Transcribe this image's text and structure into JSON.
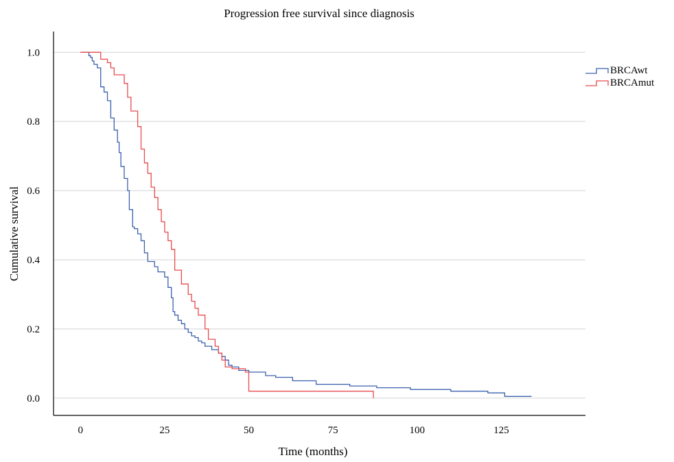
{
  "chart_data": {
    "type": "line",
    "subtype": "kaplan-meier-step",
    "title": "Progression free survival since diagnosis",
    "xlabel": "Time (months)",
    "ylabel": "Cumulative survival",
    "xlim": [
      -8,
      150
    ],
    "ylim": [
      -0.05,
      1.06
    ],
    "xticks": [
      0,
      25,
      50,
      75,
      100,
      125
    ],
    "xtick_labels": [
      "0",
      "25",
      "50",
      "75",
      "100",
      "125"
    ],
    "yticks": [
      0.0,
      0.2,
      0.4,
      0.6,
      0.8,
      1.0
    ],
    "ytick_labels": [
      "0.0",
      "0.2",
      "0.4",
      "0.6",
      "0.8",
      "1.0"
    ],
    "grid": "horizontal",
    "legend_position": "top-right",
    "series": [
      {
        "name": "BRCAwt",
        "color": "#3a5fad",
        "x": [
          0,
          2.5,
          3,
          3.5,
          4,
          5,
          6,
          7,
          8,
          9,
          10,
          11,
          11.5,
          12,
          13,
          14,
          14.5,
          15.5,
          16,
          17,
          18,
          19,
          20,
          22,
          23,
          25,
          26,
          27,
          27.5,
          28,
          29,
          30,
          31,
          32,
          33,
          34,
          35,
          36,
          37,
          39,
          41,
          42,
          43,
          44,
          45,
          47,
          50,
          55,
          58,
          63,
          70,
          80,
          88,
          98,
          110,
          121,
          126,
          134
        ],
        "y": [
          1.0,
          0.99,
          0.985,
          0.975,
          0.965,
          0.955,
          0.9,
          0.885,
          0.86,
          0.81,
          0.775,
          0.74,
          0.71,
          0.67,
          0.635,
          0.6,
          0.545,
          0.495,
          0.49,
          0.475,
          0.455,
          0.42,
          0.395,
          0.38,
          0.365,
          0.35,
          0.32,
          0.29,
          0.25,
          0.24,
          0.225,
          0.215,
          0.2,
          0.19,
          0.18,
          0.175,
          0.165,
          0.16,
          0.15,
          0.14,
          0.13,
          0.12,
          0.11,
          0.095,
          0.09,
          0.08,
          0.075,
          0.065,
          0.06,
          0.05,
          0.04,
          0.035,
          0.03,
          0.025,
          0.02,
          0.015,
          0.005,
          0.005
        ]
      },
      {
        "name": "BRCAmut",
        "color": "#e8494c",
        "x": [
          0,
          6,
          8,
          9,
          10,
          13,
          14,
          15,
          17,
          18,
          19,
          20,
          21,
          22,
          23,
          24,
          25,
          26,
          27,
          28,
          30,
          32,
          33,
          34,
          35,
          37,
          38,
          40,
          41,
          42,
          43,
          45,
          49,
          50,
          87
        ],
        "y": [
          1.0,
          0.98,
          0.97,
          0.955,
          0.935,
          0.91,
          0.87,
          0.83,
          0.785,
          0.72,
          0.68,
          0.65,
          0.61,
          0.58,
          0.545,
          0.51,
          0.48,
          0.455,
          0.43,
          0.37,
          0.33,
          0.3,
          0.28,
          0.26,
          0.24,
          0.2,
          0.17,
          0.15,
          0.13,
          0.11,
          0.09,
          0.085,
          0.075,
          0.02,
          0.0
        ]
      }
    ]
  }
}
